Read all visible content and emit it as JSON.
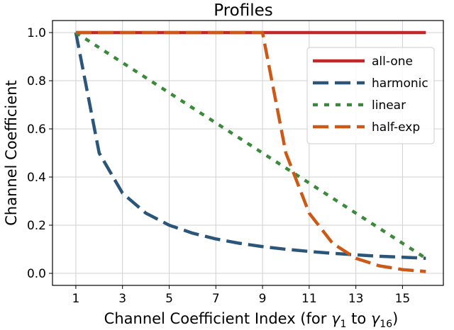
{
  "chart_data": {
    "type": "line",
    "title": "Profiles",
    "xlabel": "Channel Coefficient Index (for ",
    "xlabel_math": {
      "var1": "γ",
      "sub1": "1",
      "middle": " to ",
      "var2": "γ",
      "sub2": "16",
      "close": ")"
    },
    "ylabel": "Channel Coefficient",
    "x": [
      1,
      2,
      3,
      4,
      5,
      6,
      7,
      8,
      9,
      10,
      11,
      12,
      13,
      14,
      15,
      16
    ],
    "xlim": [
      0.0,
      16.75
    ],
    "ylim": [
      -0.05,
      1.05
    ],
    "xticks": [
      1,
      3,
      5,
      7,
      9,
      11,
      13,
      15
    ],
    "xtick_labels": [
      "1",
      "3",
      "5",
      "7",
      "9",
      "11",
      "13",
      "15"
    ],
    "yticks": [
      0.0,
      0.2,
      0.4,
      0.6,
      0.8,
      1.0
    ],
    "ytick_labels": [
      "0.0",
      "0.2",
      "0.4",
      "0.6",
      "0.8",
      "1.0"
    ],
    "grid": true,
    "legend_position": "upper right",
    "series": [
      {
        "name": "all-one",
        "color": "#c0282a",
        "style": "solid",
        "values": [
          1,
          1,
          1,
          1,
          1,
          1,
          1,
          1,
          1,
          1,
          1,
          1,
          1,
          1,
          1,
          1
        ]
      },
      {
        "name": "harmonic",
        "color": "#2b567a",
        "style": "dashed",
        "values": [
          1.0,
          0.5,
          0.333,
          0.25,
          0.2,
          0.167,
          0.143,
          0.125,
          0.111,
          0.1,
          0.091,
          0.083,
          0.077,
          0.071,
          0.067,
          0.0625
        ]
      },
      {
        "name": "linear",
        "color": "#3a8a3a",
        "style": "dotted",
        "values": [
          1.0,
          0.9375,
          0.875,
          0.8125,
          0.75,
          0.6875,
          0.625,
          0.5625,
          0.5,
          0.4375,
          0.375,
          0.3125,
          0.25,
          0.1875,
          0.125,
          0.0625
        ]
      },
      {
        "name": "half-exp",
        "color": "#cc5a16",
        "style": "dashed",
        "values": [
          1.0,
          1.0,
          1.0,
          1.0,
          1.0,
          1.0,
          1.0,
          1.0,
          1.0,
          0.5,
          0.25,
          0.125,
          0.0625,
          0.03125,
          0.015625,
          0.0078125
        ]
      }
    ]
  }
}
